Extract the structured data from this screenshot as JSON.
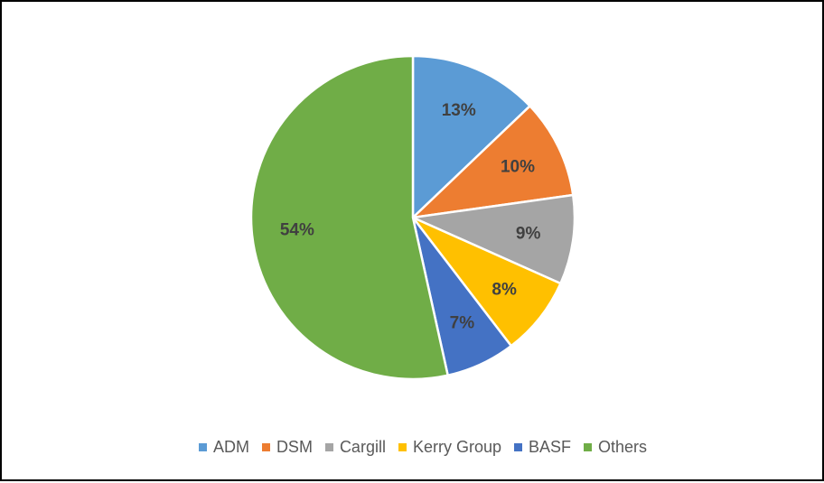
{
  "chart_data": {
    "type": "pie",
    "title": "",
    "start_angle_deg": 0,
    "direction": "clockwise",
    "slices": [
      {
        "name": "ADM",
        "value": 13,
        "label": "13%",
        "color": "#5B9BD5"
      },
      {
        "name": "DSM",
        "value": 10,
        "label": "10%",
        "color": "#ED7D31"
      },
      {
        "name": "Cargill",
        "value": 9,
        "label": "9%",
        "color": "#A5A5A5"
      },
      {
        "name": "Kerry Group",
        "value": 8,
        "label": "8%",
        "color": "#FFC000"
      },
      {
        "name": "BASF",
        "value": 7,
        "label": "7%",
        "color": "#4472C4"
      },
      {
        "name": "Others",
        "value": 54,
        "label": "54%",
        "color": "#70AD47"
      }
    ],
    "legend_position": "bottom"
  }
}
